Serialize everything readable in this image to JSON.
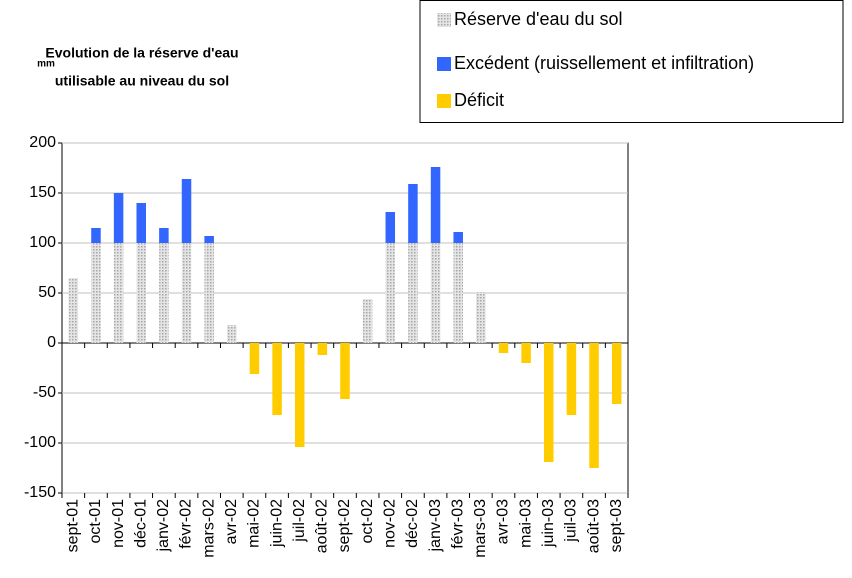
{
  "chart_data": {
    "type": "bar",
    "stacked": true,
    "title": "Evolution de la réserve d'eau utilisable au niveau du sol",
    "y_label": "mm",
    "categories": [
      "sept-01",
      "oct-01",
      "nov-01",
      "déc-01",
      "janv-02",
      "févr-02",
      "mars-02",
      "avr-02",
      "mai-02",
      "juin-02",
      "juil-02",
      "août-02",
      "sept-02",
      "oct-02",
      "nov-02",
      "déc-02",
      "janv-03",
      "févr-03",
      "mars-03",
      "avr-03",
      "mai-03",
      "juin-03",
      "juil-03",
      "août-03",
      "sept-03"
    ],
    "series": [
      {
        "name": "Réserve d'eau du sol",
        "color": "#c8c8c8",
        "values": [
          65,
          100,
          100,
          100,
          100,
          100,
          100,
          18,
          null,
          null,
          null,
          null,
          null,
          44,
          100,
          100,
          100,
          100,
          51,
          null,
          null,
          null,
          null,
          null,
          null
        ]
      },
      {
        "name": "Excédent (ruissellement et infiltration)",
        "color": "#3366ff",
        "values": [
          null,
          15,
          50,
          40,
          15,
          64,
          7,
          null,
          null,
          null,
          null,
          null,
          null,
          null,
          31,
          59,
          76,
          11,
          null,
          null,
          null,
          null,
          null,
          null,
          null
        ]
      },
      {
        "name": "Déficit",
        "color": "#ffcc00",
        "values": [
          null,
          null,
          null,
          null,
          null,
          null,
          null,
          null,
          -31,
          -72,
          -104,
          -12,
          -56,
          null,
          null,
          null,
          null,
          null,
          null,
          -10,
          -20,
          -119,
          -72,
          -125,
          -61
        ]
      }
    ],
    "ylim": [
      -150,
      200
    ],
    "yticks": [
      -150,
      -100,
      -50,
      0,
      50,
      100,
      150,
      200
    ],
    "grid": true,
    "legend": "top-right"
  }
}
